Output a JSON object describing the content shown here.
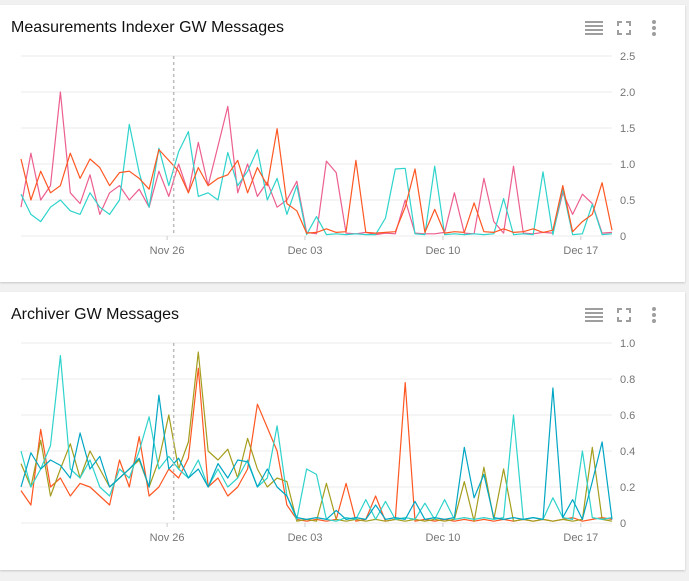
{
  "toolbar_icons": [
    "legend-list-icon",
    "fullscreen-icon",
    "more-vert-icon"
  ],
  "x": [
    "Nov 18 14:00",
    "Nov 19 02:00",
    "Nov 19 14:00",
    "Nov 20 02:00",
    "Nov 20 14:00",
    "Nov 21 02:00",
    "Nov 21 14:00",
    "Nov 22 02:00",
    "Nov 22 14:00",
    "Nov 23 02:00",
    "Nov 23 14:00",
    "Nov 24 02:00",
    "Nov 24 14:00",
    "Nov 25 02:00",
    "Nov 25 14:00",
    "Nov 26 02:00",
    "Nov 26 14:00",
    "Nov 27 02:00",
    "Nov 27 14:00",
    "Nov 28 02:00",
    "Nov 28 14:00",
    "Nov 29 02:00",
    "Nov 29 14:00",
    "Nov 30 02:00",
    "Nov 30 14:00",
    "Dec 1 02:00",
    "Dec 1 14:00",
    "Dec 2 02:00",
    "Dec 2 14:00",
    "Dec 3 02:00",
    "Dec 3 14:00",
    "Dec 4 02:00",
    "Dec 4 14:00",
    "Dec 5 02:00",
    "Dec 5 14:00",
    "Dec 6 02:00",
    "Dec 6 14:00",
    "Dec 7 02:00",
    "Dec 7 14:00",
    "Dec 8 02:00",
    "Dec 8 14:00",
    "Dec 9 02:00",
    "Dec 9 14:00",
    "Dec 10 02:00",
    "Dec 10 14:00",
    "Dec 11 02:00",
    "Dec 11 14:00",
    "Dec 12 02:00",
    "Dec 12 14:00",
    "Dec 13 02:00",
    "Dec 13 14:00",
    "Dec 14 02:00",
    "Dec 14 14:00",
    "Dec 15 02:00",
    "Dec 15 14:00",
    "Dec 16 02:00",
    "Dec 16 14:00",
    "Dec 17 02:00",
    "Dec 17 14:00",
    "Dec 18 02:00",
    "Dec 18 14:00"
  ],
  "chart_data": [
    {
      "type": "line",
      "title": "Measurements Indexer GW Messages",
      "xlim": [
        "Nov 18 14:00",
        "Dec 18 14:00"
      ],
      "ylim": [
        0,
        2.5
      ],
      "x_ticks": [
        {
          "label": "Nov 26",
          "at": "Nov 26 00:00"
        },
        {
          "label": "Dec 03",
          "at": "Dec 3 00:00"
        },
        {
          "label": "Dec 10",
          "at": "Dec 10 00:00"
        },
        {
          "label": "Dec 17",
          "at": "Dec 17 00:00"
        }
      ],
      "y_ticks": [
        {
          "label": "0",
          "v": 0
        },
        {
          "label": "0.5",
          "v": 0.5
        },
        {
          "label": "1.0",
          "v": 1.0
        },
        {
          "label": "1.5",
          "v": 1.5
        },
        {
          "label": "2.0",
          "v": 2.0
        },
        {
          "label": "2.5",
          "v": 2.5
        }
      ],
      "grid": true,
      "y_axis_side": "right",
      "marker_x": "Nov 26 08:00",
      "series": [
        {
          "color": "#ec5f8f",
          "values": [
            0.4,
            1.15,
            0.5,
            0.7,
            2.0,
            0.6,
            0.45,
            0.85,
            0.3,
            0.6,
            0.7,
            0.5,
            0.65,
            0.4,
            0.9,
            0.55,
            1.0,
            0.6,
            1.3,
            0.7,
            1.25,
            1.8,
            0.6,
            1.0,
            0.55,
            0.75,
            0.4,
            0.5,
            0.76,
            0.05,
            0.03,
            1.04,
            0.88,
            0.04,
            0.03,
            0.05,
            0.02,
            0.04,
            0.03,
            0.5,
            0.04,
            0.03,
            0.03,
            0.05,
            0.6,
            0.04,
            0.03,
            0.8,
            0.2,
            0.04,
            0.97,
            0.04,
            0.03,
            0.05,
            0.04,
            0.6,
            0.3,
            0.58,
            0.45,
            0.04,
            0.05
          ]
        },
        {
          "color": "#2ed3cb",
          "values": [
            0.58,
            0.3,
            0.2,
            0.4,
            0.5,
            0.35,
            0.3,
            0.6,
            0.4,
            0.3,
            0.5,
            1.55,
            0.88,
            0.4,
            1.22,
            0.7,
            1.17,
            1.45,
            0.55,
            0.6,
            0.5,
            1.16,
            0.7,
            0.9,
            1.2,
            0.5,
            0.8,
            0.3,
            0.7,
            0.02,
            0.27,
            0.02,
            0.03,
            0.02,
            0.03,
            0.02,
            0.02,
            0.25,
            0.93,
            0.94,
            0.03,
            0.02,
            0.97,
            0.02,
            0.03,
            0.02,
            0.03,
            0.02,
            0.03,
            0.52,
            0.02,
            0.03,
            0.02,
            0.89,
            0.02,
            0.65,
            0.02,
            0.03,
            0.44,
            0.02,
            0.03
          ]
        },
        {
          "color": "#ff5722",
          "values": [
            1.07,
            0.5,
            0.9,
            0.6,
            0.7,
            1.15,
            0.8,
            1.07,
            0.95,
            0.7,
            0.88,
            0.9,
            0.8,
            0.65,
            1.2,
            1.05,
            0.9,
            0.6,
            0.95,
            0.7,
            0.8,
            0.85,
            1.05,
            0.6,
            0.95,
            0.7,
            1.49,
            0.45,
            0.35,
            0.04,
            0.05,
            0.1,
            0.05,
            0.06,
            1.05,
            0.05,
            0.04,
            0.05,
            0.06,
            0.4,
            0.93,
            0.05,
            0.37,
            0.04,
            0.06,
            0.05,
            0.46,
            0.06,
            0.05,
            0.1,
            0.05,
            0.06,
            0.1,
            0.05,
            0.08,
            0.7,
            0.06,
            0.2,
            0.3,
            0.74,
            0.08
          ]
        }
      ]
    },
    {
      "type": "line",
      "title": "Archiver GW Messages",
      "xlim": [
        "Nov 18 14:00",
        "Dec 18 14:00"
      ],
      "ylim": [
        0,
        1.0
      ],
      "x_ticks": [
        {
          "label": "Nov 26",
          "at": "Nov 26 00:00"
        },
        {
          "label": "Dec 03",
          "at": "Dec 3 00:00"
        },
        {
          "label": "Dec 10",
          "at": "Dec 10 00:00"
        },
        {
          "label": "Dec 17",
          "at": "Dec 17 00:00"
        }
      ],
      "y_ticks": [
        {
          "label": "0",
          "v": 0
        },
        {
          "label": "0.2",
          "v": 0.2
        },
        {
          "label": "0.4",
          "v": 0.4
        },
        {
          "label": "0.6",
          "v": 0.6
        },
        {
          "label": "0.8",
          "v": 0.8
        },
        {
          "label": "1.0",
          "v": 1.0
        }
      ],
      "grid": true,
      "y_axis_side": "right",
      "marker_x": "Nov 26 08:00",
      "series": [
        {
          "color": "#ff5722",
          "values": [
            0.18,
            0.1,
            0.52,
            0.2,
            0.25,
            0.15,
            0.22,
            0.2,
            0.15,
            0.1,
            0.35,
            0.2,
            0.48,
            0.15,
            0.2,
            0.3,
            0.25,
            0.36,
            0.86,
            0.2,
            0.25,
            0.15,
            0.2,
            0.3,
            0.66,
            0.53,
            0.4,
            0.1,
            0.02,
            0.01,
            0.02,
            0.01,
            0.02,
            0.22,
            0.01,
            0.02,
            0.15,
            0.01,
            0.02,
            0.78,
            0.01,
            0.02,
            0.01,
            0.02,
            0.01,
            0.02,
            0.01,
            0.02,
            0.01,
            0.02,
            0.01,
            0.02,
            0.01,
            0.02,
            0.01,
            0.02,
            0.03,
            0.01,
            0.02,
            0.03,
            0.02
          ]
        },
        {
          "color": "#a59d1d",
          "values": [
            0.33,
            0.2,
            0.46,
            0.15,
            0.3,
            0.44,
            0.25,
            0.4,
            0.3,
            0.2,
            0.25,
            0.3,
            0.35,
            0.2,
            0.35,
            0.6,
            0.3,
            0.45,
            0.95,
            0.4,
            0.35,
            0.41,
            0.25,
            0.47,
            0.3,
            0.2,
            0.25,
            0.23,
            0.01,
            0.02,
            0.01,
            0.22,
            0.02,
            0.01,
            0.02,
            0.01,
            0.02,
            0.01,
            0.02,
            0.01,
            0.02,
            0.01,
            0.02,
            0.01,
            0.02,
            0.23,
            0.01,
            0.31,
            0.02,
            0.3,
            0.01,
            0.02,
            0.01,
            0.02,
            0.01,
            0.02,
            0.01,
            0.02,
            0.42,
            0.02,
            0.01
          ]
        },
        {
          "color": "#2ed3cb",
          "values": [
            0.4,
            0.2,
            0.3,
            0.43,
            0.93,
            0.3,
            0.25,
            0.35,
            0.2,
            0.15,
            0.3,
            0.25,
            0.4,
            0.59,
            0.3,
            0.37,
            0.3,
            0.25,
            0.35,
            0.2,
            0.3,
            0.2,
            0.25,
            0.35,
            0.2,
            0.25,
            0.54,
            0.15,
            0.02,
            0.3,
            0.27,
            0.02,
            0.01,
            0.03,
            0.02,
            0.13,
            0.02,
            0.12,
            0.02,
            0.03,
            0.02,
            0.11,
            0.02,
            0.13,
            0.02,
            0.03,
            0.02,
            0.03,
            0.02,
            0.03,
            0.6,
            0.02,
            0.03,
            0.02,
            0.14,
            0.03,
            0.02,
            0.4,
            0.03,
            0.02,
            0.03
          ]
        },
        {
          "color": "#00a6c4",
          "values": [
            0.2,
            0.39,
            0.3,
            0.35,
            0.32,
            0.25,
            0.5,
            0.3,
            0.37,
            0.2,
            0.25,
            0.3,
            0.36,
            0.2,
            0.71,
            0.3,
            0.36,
            0.25,
            0.3,
            0.2,
            0.33,
            0.25,
            0.35,
            0.34,
            0.2,
            0.3,
            0.2,
            0.15,
            0.03,
            0.02,
            0.03,
            0.02,
            0.07,
            0.02,
            0.03,
            0.02,
            0.1,
            0.02,
            0.03,
            0.02,
            0.12,
            0.02,
            0.03,
            0.02,
            0.03,
            0.42,
            0.14,
            0.27,
            0.03,
            0.02,
            0.03,
            0.02,
            0.03,
            0.02,
            0.75,
            0.03,
            0.13,
            0.02,
            0.23,
            0.45,
            0.02
          ]
        }
      ]
    }
  ]
}
